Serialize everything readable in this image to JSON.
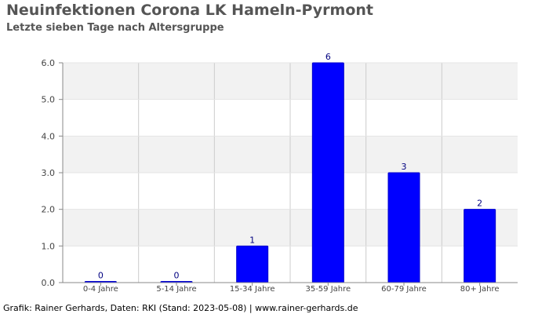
{
  "title": "Neuinfektionen Corona LK Hameln-Pyrmont",
  "subtitle": "Letzte sieben Tage nach Altersgruppe",
  "footer": "Grafik: Rainer Gerhards, Daten: RKI (Stand: 2023-05-08) | www.rainer-gerhards.de",
  "colors": {
    "bar": "#0000ff",
    "label": "#000080",
    "band": "#f2f2f2",
    "grid": "#cccccc",
    "axis": "#888888",
    "tick_text": "#444444"
  },
  "chart_data": {
    "type": "bar",
    "categories": [
      "0-4 Jahre",
      "5-14 Jahre",
      "15-34 Jahre",
      "35-59 Jahre",
      "60-79 Jahre",
      "80+ Jahre"
    ],
    "values": [
      0,
      0,
      1,
      6,
      3,
      2
    ],
    "data_labels": [
      "0",
      "0",
      "1",
      "6",
      "3",
      "2"
    ],
    "y_ticks": [
      "0.0",
      "1.0",
      "2.0",
      "3.0",
      "4.0",
      "5.0",
      "6.0"
    ],
    "ylim": [
      0,
      6
    ],
    "grid": true,
    "legend": "none"
  }
}
